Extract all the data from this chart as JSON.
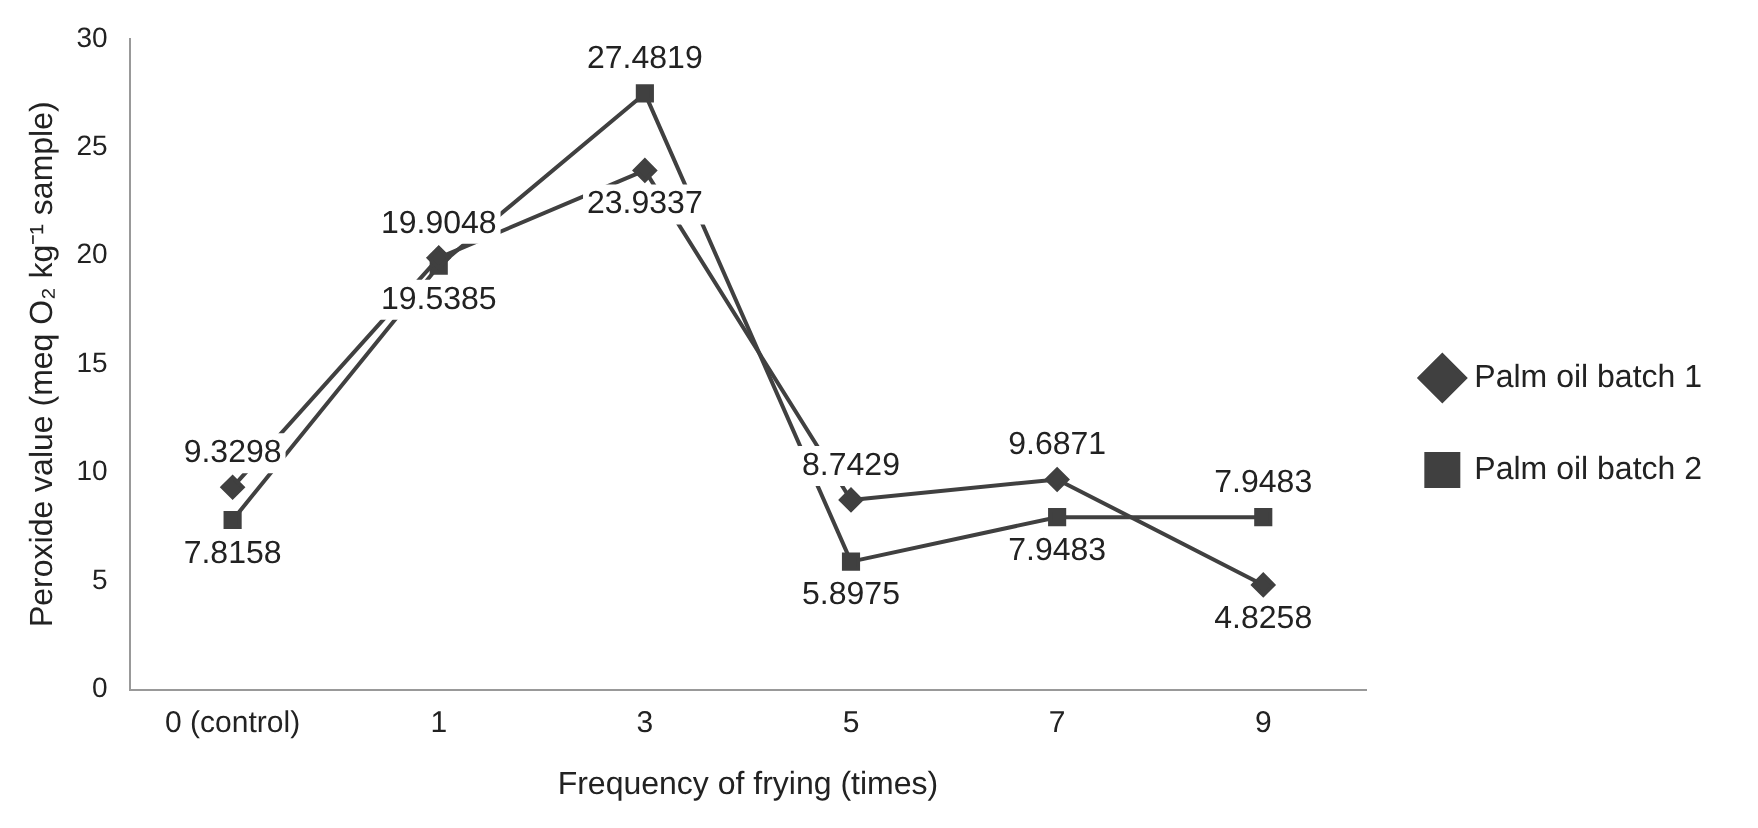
{
  "chart_data": {
    "type": "line",
    "xlabel": "Frequency of frying (times)",
    "ylabel": "Peroxide value (meq O₂ kg⁻¹ sample)",
    "categories": [
      "0 (control)",
      "1",
      "3",
      "5",
      "7",
      "9"
    ],
    "series": [
      {
        "name": "Palm oil batch 1",
        "color": "#404040",
        "marker": "diamond",
        "values": [
          9.3298,
          19.9048,
          23.9337,
          8.7429,
          9.6871,
          4.8258
        ]
      },
      {
        "name": "Palm oil batch 2",
        "color": "#404040",
        "marker": "square",
        "values": [
          7.8158,
          19.5385,
          27.4819,
          5.8975,
          7.9483,
          7.9483
        ]
      }
    ],
    "ylim": [
      0,
      30
    ],
    "yticks": [
      0,
      5,
      10,
      15,
      20,
      25,
      30
    ],
    "grid": false,
    "legend": "right",
    "data_labels": true
  }
}
